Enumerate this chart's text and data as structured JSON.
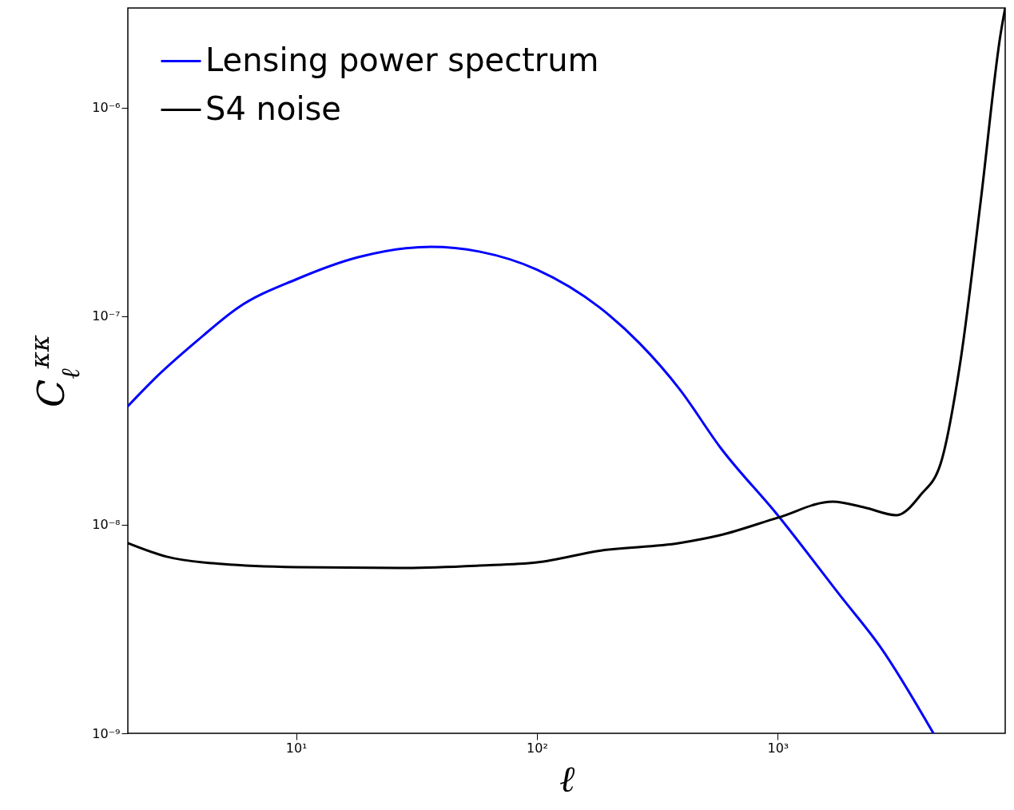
{
  "chart_data": {
    "type": "line",
    "xlabel": "ℓ",
    "ylabel": "C$_{ℓ}$$^{κκ}$",
    "log": "xy",
    "grid": false,
    "legend": "top left",
    "xlim": [
      2,
      8800
    ],
    "ylim": [
      1e-09,
      3e-06
    ],
    "xticks": [
      {
        "value": 10,
        "label": "10¹"
      },
      {
        "value": 100,
        "label": "10²"
      },
      {
        "value": 1000,
        "label": "10³"
      }
    ],
    "yticks": [
      {
        "value": 1e-09,
        "label": "10⁻⁹"
      },
      {
        "value": 1e-08,
        "label": "10⁻⁸"
      },
      {
        "value": 1e-07,
        "label": "10⁻⁷"
      },
      {
        "value": 1e-06,
        "label": "10⁻⁶"
      }
    ],
    "series": [
      {
        "name": "Lensing power spectrum",
        "color": "#0000ff",
        "x": [
          2,
          2.67,
          3.92,
          5.75,
          10,
          18.2,
          36.3,
          57.5,
          100,
          182,
          267,
          392,
          575,
          1000,
          1820,
          2670,
          4430
        ],
        "values": [
          3.7e-08,
          5.2e-08,
          7.7e-08,
          1.1e-07,
          1.5e-07,
          1.92e-07,
          2.15e-07,
          2.04e-07,
          1.67e-07,
          1.1e-07,
          7.4e-08,
          4.45e-08,
          2.36e-08,
          1.11e-08,
          4.56e-09,
          2.59e-09,
          1e-09
        ]
      },
      {
        "name": "S4 noise",
        "color": "#000000",
        "x": [
          2,
          2.9,
          4.93,
          10,
          26.7,
          57.5,
          100,
          182,
          392,
          575,
          1000,
          1690,
          2290,
          3110,
          3920,
          4750,
          5750,
          6970,
          8450,
          8800
        ],
        "values": [
          8.17e-09,
          7.03e-09,
          6.48e-09,
          6.26e-09,
          6.2e-09,
          6.37e-09,
          6.6e-09,
          7.5e-09,
          8.17e-09,
          8.9e-09,
          1.08e-08,
          1.29e-08,
          1.21e-08,
          1.11e-08,
          1.39e-08,
          1.97e-08,
          6.2e-08,
          3.6e-07,
          2.31e-06,
          3e-06
        ]
      }
    ]
  }
}
